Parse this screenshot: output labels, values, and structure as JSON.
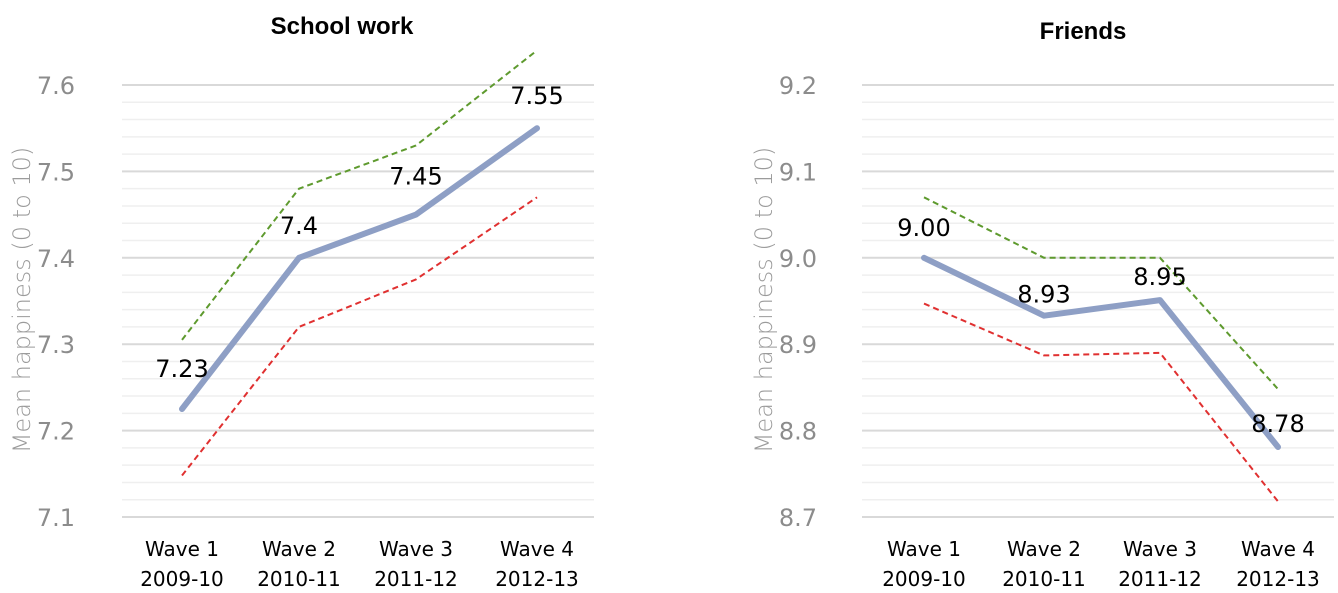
{
  "colors": {
    "mean": "#8e9fc5",
    "upper": "#5e9a2e",
    "lower": "#e03030"
  },
  "chart_data": [
    {
      "type": "line",
      "title": "School work",
      "ylabel": "Mean happiness (0 to 10)",
      "categories": [
        "Wave 1",
        "Wave 2",
        "Wave 3",
        "Wave 4"
      ],
      "category_sublabels": [
        "2009-10",
        "2010-11",
        "2011-12",
        "2012-13"
      ],
      "ylim": [
        7.1,
        7.6
      ],
      "yticks": [
        "7.1",
        "7.2",
        "7.3",
        "7.4",
        "7.5",
        "7.6"
      ],
      "grid": true,
      "series": [
        {
          "role": "upper",
          "values": [
            7.305,
            7.48,
            7.53,
            7.64
          ]
        },
        {
          "role": "mean",
          "values": [
            7.225,
            7.4,
            7.45,
            7.55
          ],
          "labels": [
            "7.23",
            "7.4",
            "7.45",
            "7.55"
          ]
        },
        {
          "role": "lower",
          "values": [
            7.148,
            7.32,
            7.375,
            7.47
          ]
        }
      ]
    },
    {
      "type": "line",
      "title": "Friends",
      "ylabel": "Mean happiness (0 to 10)",
      "categories": [
        "Wave 1",
        "Wave 2",
        "Wave 3",
        "Wave 4"
      ],
      "category_sublabels": [
        "2009-10",
        "2010-11",
        "2011-12",
        "2012-13"
      ],
      "ylim": [
        8.7,
        9.2
      ],
      "yticks": [
        "8.7",
        "8.8",
        "8.9",
        "9.0",
        "9.1",
        "9.2"
      ],
      "grid": true,
      "series": [
        {
          "role": "upper",
          "values": [
            9.07,
            9.0,
            9.0,
            8.848
          ]
        },
        {
          "role": "mean",
          "values": [
            9.0,
            8.933,
            8.951,
            8.781
          ],
          "labels": [
            "9.00",
            "8.93",
            "8.95",
            "8.78"
          ]
        },
        {
          "role": "lower",
          "values": [
            8.947,
            8.887,
            8.89,
            8.718
          ]
        }
      ]
    }
  ]
}
